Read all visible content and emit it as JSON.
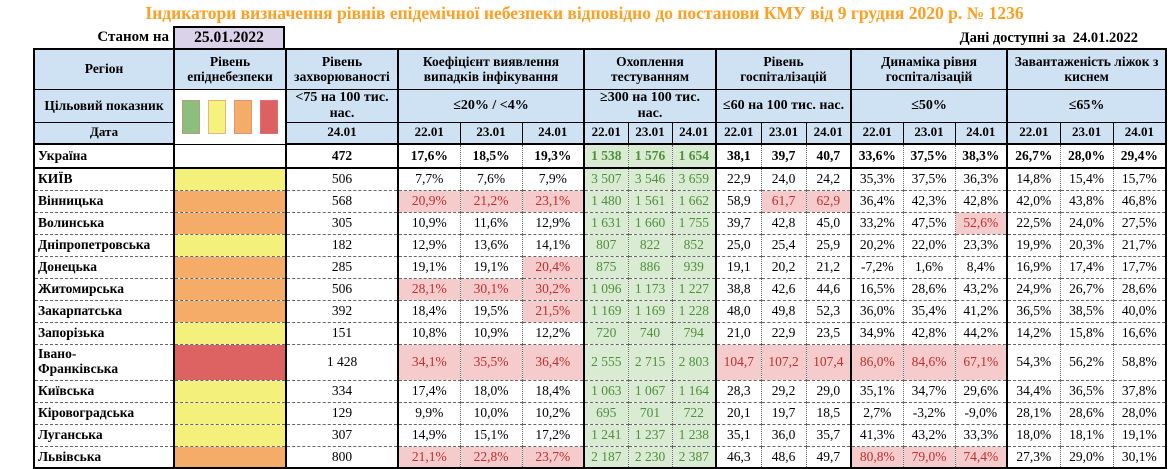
{
  "title": "Індикатори визначення рівнів епідемічної небезпеки відповідно до постанови КМУ від 9 грудня 2020 р. № 1236",
  "as_of": {
    "label": "Станом на",
    "date": "25.01.2022"
  },
  "available": {
    "label": "Дані доступні за",
    "date": "24.01.2022"
  },
  "colors": {
    "title_orange": "#FF9E1F",
    "header_bg": "#CFE2F3",
    "as_of_bg": "#D9D2E9",
    "level_yellow": "#F3F17C",
    "level_orange": "#F5AC68",
    "level_red": "#DD6262",
    "breach_bg": "#F5CBCB",
    "breach_text": "#C03030",
    "testing_bg": "#DAEBD4",
    "testing_text": "#4F8F3B"
  },
  "table": {
    "header": {
      "region_label": "Регіон",
      "level_label": "Рівень епіднебезпеки",
      "target_label": "Цільовий показник",
      "date_label": "Дата",
      "legend_colors": [
        "#8CBE7C",
        "#F5F37E",
        "#F4AD67",
        "#DC6163"
      ]
    },
    "groups": [
      {
        "key": "incidence",
        "title": "Рівень захворюваності",
        "threshold": "<75 на 100 тис. нас.",
        "dates": [
          "24.01"
        ]
      },
      {
        "key": "detection",
        "title": "Коефіцієнт виявлення випадків інфікування",
        "threshold": "≤20% / <4%",
        "dates": [
          "22.01",
          "23.01",
          "24.01"
        ]
      },
      {
        "key": "testing",
        "title": "Охоплення тестуванням",
        "threshold": "≥300 на 100 тис. нас.",
        "dates": [
          "22.01",
          "23.01",
          "24.01"
        ],
        "style": "green"
      },
      {
        "key": "hosp",
        "title": "Рівень госпіталізацій",
        "threshold": "≤60 на 100 тис. нас.",
        "dates": [
          "22.01",
          "23.01",
          "24.01"
        ]
      },
      {
        "key": "dynamics",
        "title": "Динаміка рівня госпіталізацій",
        "threshold": "≤50%",
        "dates": [
          "22.01",
          "23.01",
          "24.01"
        ]
      },
      {
        "key": "beds",
        "title": "Завантаженість ліжок з киснем",
        "threshold": "≤65%",
        "dates": [
          "22.01",
          "23.01",
          "24.01"
        ]
      }
    ],
    "rows": [
      {
        "region": "Україна",
        "level": "none",
        "incidence": "472",
        "detection": [
          "17,6%",
          "18,5%",
          "19,3%"
        ],
        "testing": [
          "1 538",
          "1 576",
          "1 654"
        ],
        "hosp": [
          "38,1",
          "39,7",
          "40,7"
        ],
        "dynamics": [
          "33,6%",
          "37,5%",
          "38,3%"
        ],
        "beds": [
          "26,7%",
          "28,0%",
          "29,4%"
        ]
      },
      {
        "region": "КИЇВ",
        "level": "yellow",
        "incidence": "506",
        "detection": [
          "7,7%",
          "7,6%",
          "7,9%"
        ],
        "testing": [
          "3 507",
          "3 546",
          "3 659"
        ],
        "hosp": [
          "22,9",
          "24,0",
          "24,2"
        ],
        "dynamics": [
          "35,3%",
          "37,5%",
          "36,3%"
        ],
        "beds": [
          "14,8%",
          "15,4%",
          "15,7%"
        ]
      },
      {
        "region": "Вінницька",
        "level": "orange",
        "incidence": "568",
        "detection": [
          "20,9%",
          "21,2%",
          "23,1%"
        ],
        "detection_hl": [
          1,
          1,
          1
        ],
        "testing": [
          "1 480",
          "1 561",
          "1 662"
        ],
        "hosp": [
          "58,9",
          "61,7",
          "62,9"
        ],
        "hosp_hl": [
          0,
          1,
          1
        ],
        "dynamics": [
          "36,4%",
          "42,3%",
          "42,8%"
        ],
        "beds": [
          "42,0%",
          "43,8%",
          "46,8%"
        ]
      },
      {
        "region": "Волинська",
        "level": "orange",
        "incidence": "305",
        "detection": [
          "10,9%",
          "11,6%",
          "12,9%"
        ],
        "testing": [
          "1 631",
          "1 660",
          "1 755"
        ],
        "hosp": [
          "39,7",
          "42,8",
          "45,0"
        ],
        "dynamics": [
          "33,2%",
          "47,5%",
          "52,6%"
        ],
        "dynamics_hl": [
          0,
          0,
          1
        ],
        "beds": [
          "22,5%",
          "24,0%",
          "27,5%"
        ]
      },
      {
        "region": "Дніпропетровська",
        "level": "yellow",
        "incidence": "182",
        "detection": [
          "12,9%",
          "13,6%",
          "14,1%"
        ],
        "testing": [
          "807",
          "822",
          "852"
        ],
        "hosp": [
          "25,0",
          "25,4",
          "25,9"
        ],
        "dynamics": [
          "20,2%",
          "22,0%",
          "23,3%"
        ],
        "beds": [
          "19,9%",
          "20,3%",
          "21,7%"
        ]
      },
      {
        "region": "Донецька",
        "level": "orange",
        "incidence": "285",
        "detection": [
          "19,1%",
          "19,1%",
          "20,4%"
        ],
        "detection_hl": [
          0,
          0,
          1
        ],
        "testing": [
          "875",
          "886",
          "939"
        ],
        "hosp": [
          "19,1",
          "20,2",
          "21,2"
        ],
        "dynamics": [
          "-7,2%",
          "1,6%",
          "8,4%"
        ],
        "beds": [
          "16,9%",
          "17,4%",
          "17,7%"
        ]
      },
      {
        "region": "Житомирська",
        "level": "orange",
        "incidence": "506",
        "detection": [
          "28,1%",
          "30,1%",
          "30,2%"
        ],
        "detection_hl": [
          1,
          1,
          1
        ],
        "testing": [
          "1 096",
          "1 173",
          "1 227"
        ],
        "hosp": [
          "38,8",
          "42,6",
          "44,6"
        ],
        "dynamics": [
          "16,5%",
          "28,6%",
          "43,2%"
        ],
        "beds": [
          "24,9%",
          "26,7%",
          "28,6%"
        ]
      },
      {
        "region": "Закарпатська",
        "level": "orange",
        "incidence": "392",
        "detection": [
          "18,4%",
          "19,5%",
          "21,5%"
        ],
        "detection_hl": [
          0,
          0,
          1
        ],
        "testing": [
          "1 169",
          "1 169",
          "1 228"
        ],
        "hosp": [
          "48,0",
          "49,8",
          "52,3"
        ],
        "dynamics": [
          "36,0%",
          "35,4%",
          "41,2%"
        ],
        "beds": [
          "36,5%",
          "38,5%",
          "40,0%"
        ]
      },
      {
        "region": "Запорізька",
        "level": "yellow",
        "incidence": "151",
        "detection": [
          "10,8%",
          "10,9%",
          "12,2%"
        ],
        "testing": [
          "720",
          "740",
          "794"
        ],
        "hosp": [
          "21,0",
          "22,9",
          "23,5"
        ],
        "dynamics": [
          "34,9%",
          "42,8%",
          "44,2%"
        ],
        "beds": [
          "14,2%",
          "15,8%",
          "16,6%"
        ]
      },
      {
        "region": "Івано-\nФранківська",
        "level": "red",
        "incidence": "1 428",
        "detection": [
          "34,1%",
          "35,5%",
          "36,4%"
        ],
        "detection_hl": [
          1,
          1,
          1
        ],
        "testing": [
          "2 555",
          "2 715",
          "2 803"
        ],
        "hosp": [
          "104,7",
          "107,2",
          "107,4"
        ],
        "hosp_hl": [
          1,
          1,
          1
        ],
        "dynamics": [
          "86,0%",
          "84,6%",
          "67,1%"
        ],
        "dynamics_hl": [
          1,
          1,
          1
        ],
        "beds": [
          "54,3%",
          "56,2%",
          "58,8%"
        ]
      },
      {
        "region": "Київська",
        "level": "yellow",
        "incidence": "334",
        "detection": [
          "17,4%",
          "18,0%",
          "18,4%"
        ],
        "testing": [
          "1 063",
          "1 067",
          "1 164"
        ],
        "hosp": [
          "28,3",
          "29,2",
          "29,0"
        ],
        "dynamics": [
          "35,1%",
          "34,7%",
          "29,6%"
        ],
        "beds": [
          "34,4%",
          "36,5%",
          "37,8%"
        ]
      },
      {
        "region": "Кіровоградська",
        "level": "yellow",
        "incidence": "129",
        "detection": [
          "9,9%",
          "10,0%",
          "10,2%"
        ],
        "testing": [
          "695",
          "701",
          "722"
        ],
        "hosp": [
          "20,1",
          "19,7",
          "18,5"
        ],
        "dynamics": [
          "2,7%",
          "-3,2%",
          "-9,0%"
        ],
        "beds": [
          "28,1%",
          "28,6%",
          "28,0%"
        ]
      },
      {
        "region": "Луганська",
        "level": "yellow",
        "incidence": "307",
        "detection": [
          "14,9%",
          "15,1%",
          "17,2%"
        ],
        "testing": [
          "1 241",
          "1 237",
          "1 238"
        ],
        "hosp": [
          "35,1",
          "36,0",
          "35,7"
        ],
        "dynamics": [
          "41,3%",
          "43,2%",
          "33,3%"
        ],
        "beds": [
          "18,0%",
          "18,1%",
          "19,1%"
        ]
      },
      {
        "region": "Львівська",
        "level": "orange",
        "incidence": "800",
        "detection": [
          "21,1%",
          "22,8%",
          "23,7%"
        ],
        "detection_hl": [
          1,
          1,
          1
        ],
        "testing": [
          "2 187",
          "2 230",
          "2 387"
        ],
        "hosp": [
          "46,3",
          "48,6",
          "49,7"
        ],
        "dynamics": [
          "80,8%",
          "79,0%",
          "74,4%"
        ],
        "dynamics_hl": [
          1,
          1,
          1
        ],
        "beds": [
          "27,3%",
          "29,0%",
          "30,1%"
        ]
      }
    ]
  }
}
